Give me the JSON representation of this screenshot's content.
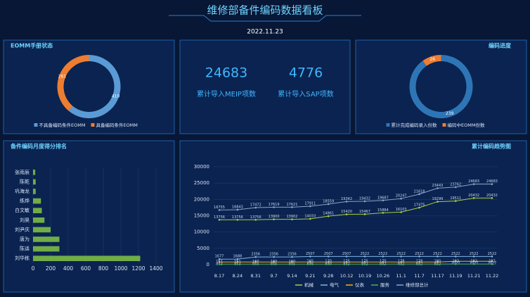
{
  "header": {
    "title": "维修部备件编码数据看板",
    "date": "2022.11.23"
  },
  "kpis": [
    {
      "value": 24683,
      "label": "累计导入MEIP项数"
    },
    {
      "value": 4776,
      "label": "累计导入SAP项数"
    }
  ],
  "chart_data": [
    {
      "type": "pie",
      "title": "EOMM手册状态",
      "categories": [
        "不具备编码条件EOMM",
        "具备编码条件EOMM"
      ],
      "values": [
        410,
        261
      ],
      "colors": [
        "#5b9bd5",
        "#ed7d31"
      ]
    },
    {
      "type": "pie",
      "title": "编码进度",
      "categories": [
        "累计完成编码录入份数",
        "编码中EOMM份数"
      ],
      "values": [
        239,
        26
      ],
      "colors": [
        "#2e75b6",
        "#ed7d31"
      ]
    },
    {
      "type": "hbar",
      "title": "备件编码月度得分排名",
      "categories": [
        "张雨辰",
        "陈乾",
        "巩海龙",
        "练烨",
        "白文敏",
        "刘昊",
        "刘尹庆",
        "唐为",
        "陈适",
        "刘华栋"
      ],
      "values": [
        25,
        30,
        30,
        90,
        100,
        130,
        200,
        300,
        300,
        1220
      ],
      "color": "#70ad47",
      "xlim": [
        0,
        1400
      ],
      "xticks": [
        0,
        200,
        400,
        600,
        800,
        1000,
        1200,
        1400
      ],
      "grid": true
    },
    {
      "type": "line",
      "title": "累计编码趋势图",
      "categories": [
        "8.17",
        "8.24",
        "8.31",
        "9.7",
        "9.14",
        "9.21",
        "9.28",
        "10.12",
        "10.19",
        "10.26",
        "11.1",
        "11.7",
        "11.17",
        "11.19",
        "11.21",
        "11.22"
      ],
      "series": [
        {
          "name": "机械",
          "color": "#a9d13c",
          "values": [
            13756,
            13756,
            13756,
            13900,
            13902,
            14033,
            14861,
            15420,
            15467,
            15884,
            16103,
            17475,
            19299,
            19511,
            20432,
            20432
          ]
        },
        {
          "name": "电气",
          "color": "#7fb2e5",
          "values": [
            1677,
            1688,
            2356,
            2356,
            2356,
            2507,
            2507,
            2507,
            2522,
            2522,
            2522,
            2522,
            2522,
            2522,
            2522,
            2522
          ]
        },
        {
          "name": "仪表",
          "color": "#f4b400",
          "values": [
            813,
            813,
            815,
            815,
            815,
            816,
            820,
            822,
            822,
            822,
            822,
            822,
            822,
            1027,
            1027,
            1027
          ]
        },
        {
          "name": "服务",
          "color": "#4caf50",
          "values": [
            151,
            151,
            160,
            160,
            160,
            165,
            170,
            175,
            175,
            175,
            178,
            178,
            180,
            182,
            182,
            182
          ]
        },
        {
          "name": "维修部总计",
          "color": "#8aa4c8",
          "values": [
            16755,
            16843,
            17472,
            17619,
            17621,
            17911,
            18559,
            19342,
            19432,
            19687,
            20247,
            21618,
            23443,
            23762,
            24683,
            24683
          ]
        }
      ],
      "ylim": [
        0,
        30000
      ],
      "yticks": [
        0,
        5000,
        10000,
        15000,
        20000,
        25000,
        30000
      ],
      "grid": true
    }
  ]
}
